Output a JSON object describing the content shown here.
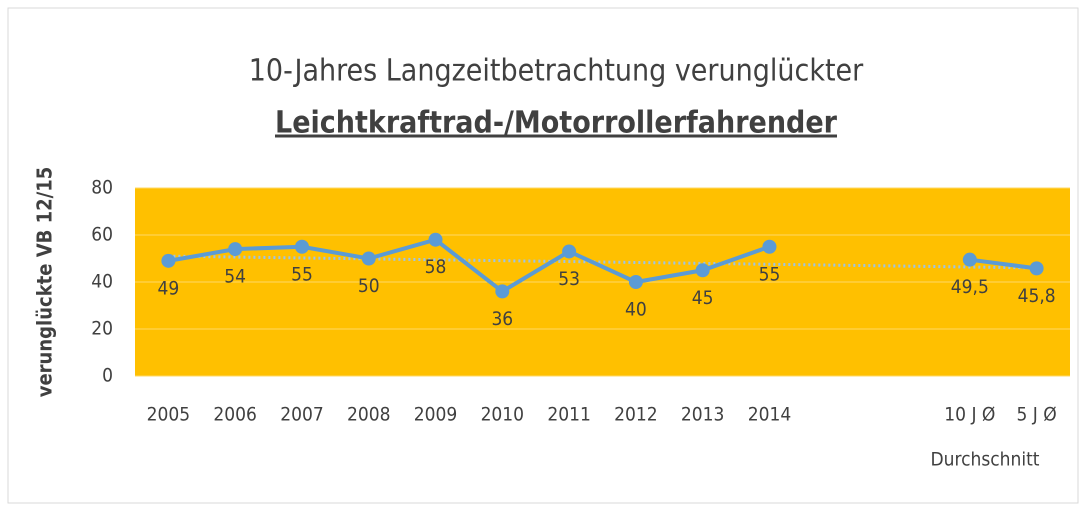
{
  "chart_data": {
    "type": "line",
    "title": "10-Jahres Langzeitbetrachtung verunglückter",
    "subtitle": "Leichtkraftrad-/Motorrollerfahrender",
    "ylabel": "verunglückte VB 12/15",
    "categories": [
      "2005",
      "2006",
      "2007",
      "2008",
      "2009",
      "2010",
      "2011",
      "2012",
      "2013",
      "2014",
      null,
      null,
      "10 J Ø",
      "5 J Ø"
    ],
    "x_group_label": "Durchschnitt",
    "series": [
      {
        "color": "#5b9bd5",
        "values": [
          49,
          54,
          55,
          50,
          58,
          36,
          53,
          40,
          45,
          55,
          null,
          null,
          49.5,
          45.8
        ],
        "value_labels": [
          "49",
          "54",
          "55",
          "50",
          "58",
          "36",
          "53",
          "40",
          "45",
          "55",
          null,
          null,
          "49,5",
          "45,8"
        ]
      }
    ],
    "trendline": {
      "start": 51,
      "end": 46,
      "color": "#9dc3e6"
    },
    "ylim": [
      0,
      80
    ],
    "yticks": [
      0,
      20,
      40,
      60,
      80
    ],
    "grid": true,
    "plot_background": "#ffc000"
  }
}
